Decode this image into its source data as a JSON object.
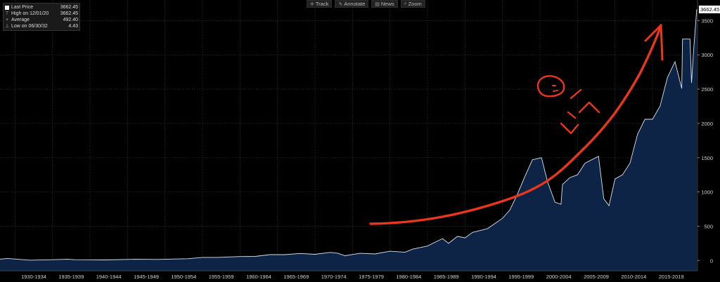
{
  "toolbar": [
    {
      "label": "Track",
      "icon": "✛"
    },
    {
      "label": "Annotate",
      "icon": "✎"
    },
    {
      "label": "News",
      "icon": "▤"
    },
    {
      "label": "Zoom",
      "icon": "⌕"
    }
  ],
  "legend": [
    {
      "label": "Last Price",
      "value": "3662.45",
      "marker": "box"
    },
    {
      "label": "High on 12/01/20",
      "value": "3662.45",
      "marker": "⊤"
    },
    {
      "label": "Average",
      "value": "492.40",
      "marker": "+"
    },
    {
      "label": "Low on 06/30/32",
      "value": "4.43",
      "marker": "⊥"
    }
  ],
  "last_value_label": "3662.45",
  "colors": {
    "area": "#0d2447",
    "line": "#d9e2ee",
    "annotation": "#e8371c",
    "grid": "#3a3a3a"
  },
  "chart_data": {
    "type": "area",
    "xlabel": "",
    "ylabel": "",
    "x_start_year": 1928,
    "x_end_year": 2021,
    "ylim": [
      -150,
      3800
    ],
    "yticks": [
      0,
      500,
      1000,
      1500,
      2000,
      2500,
      3000,
      3500
    ],
    "xtick_labels": [
      "1930-1934",
      "1935-1939",
      "1940-1944",
      "1945-1949",
      "1950-1954",
      "1955-1959",
      "1960-1964",
      "1965-1969",
      "1970-1974",
      "1975-1979",
      "1980-1984",
      "1985-1989",
      "1990-1994",
      "1995-1999",
      "2000-2004",
      "2005-2009",
      "2010-2014",
      "2015-2019"
    ],
    "grid": true,
    "series": [
      {
        "x": [
          1928,
          1929,
          1932,
          1935,
          1937,
          1938,
          1942,
          1946,
          1949,
          1953,
          1955,
          1957,
          1960,
          1962,
          1964,
          1966,
          1968,
          1970,
          1972,
          1973,
          1974,
          1976,
          1978,
          1980,
          1982,
          1983,
          1985,
          1987,
          1987.8,
          1989,
          1990,
          1991,
          1993,
          1995,
          1996,
          1997,
          1998,
          1999,
          2000.2,
          2001,
          2002,
          2002.8,
          2003,
          2004,
          2005,
          2006,
          2007.8,
          2008.5,
          2009.2,
          2010,
          2011,
          2012,
          2013,
          2014,
          2015,
          2016,
          2017,
          2018,
          2018.9,
          2019,
          2020,
          2020.2,
          2020.5,
          2020.9
        ],
        "y": [
          20,
          30,
          5,
          12,
          18,
          12,
          9,
          18,
          16,
          26,
          45,
          45,
          58,
          60,
          85,
          85,
          103,
          90,
          118,
          107,
          70,
          105,
          96,
          135,
          120,
          165,
          211,
          320,
          250,
          352,
          330,
          410,
          465,
          615,
          740,
          970,
          1230,
          1470,
          1500,
          1150,
          850,
          820,
          1110,
          1210,
          1250,
          1420,
          1520,
          900,
          800,
          1190,
          1250,
          1420,
          1840,
          2060,
          2060,
          2250,
          2670,
          2900,
          2510,
          3230,
          3230,
          2590,
          3100,
          3662.45
        ]
      }
    ]
  }
}
